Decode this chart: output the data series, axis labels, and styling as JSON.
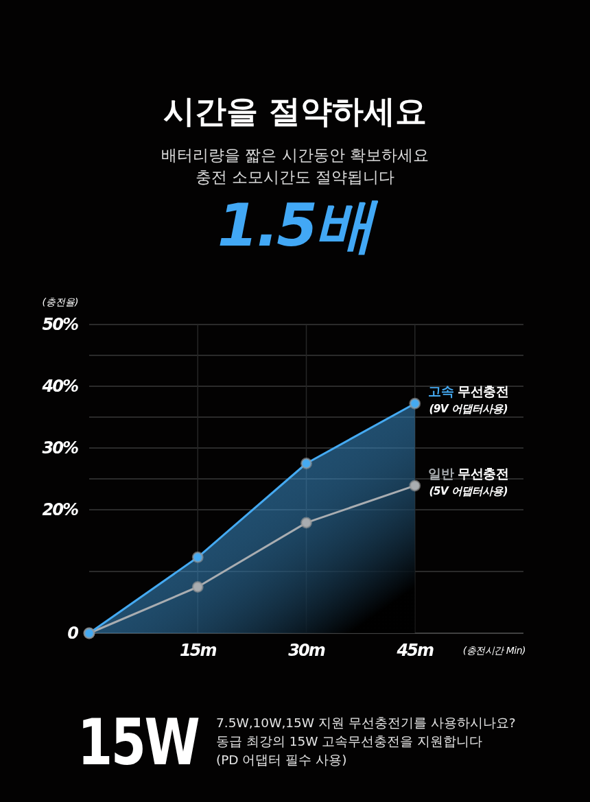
{
  "chart_data": {
    "type": "line",
    "title": "시간을 절약하세요",
    "subtitle": "배터리량을 짧은 시간동안 확보하세요\n충전 소모시간도 절약됩니다",
    "xlabel": "(충전시간 Min)",
    "ylabel": "(충전율)",
    "x": [
      0,
      15,
      30,
      45
    ],
    "series": [
      {
        "name": "고속 무선충전",
        "type": "area",
        "color": "#45aaf2",
        "values": [
          0,
          12.3,
          27.5,
          37.2
        ]
      },
      {
        "name": "일반 무선충전",
        "type": "line",
        "color": "#a9adb1",
        "values": [
          0,
          7.5,
          17.9,
          23.9
        ]
      }
    ],
    "xlim": [
      0,
      60
    ],
    "xticks": [
      {
        "value": 15,
        "label": "15m"
      },
      {
        "value": 30,
        "label": "30m"
      },
      {
        "value": 45,
        "label": "45m"
      }
    ],
    "ylim": [
      0,
      50
    ],
    "yticks": [
      0,
      {
        "value": 10,
        "label": null
      },
      {
        "value": 20,
        "label": "20%"
      },
      {
        "value": 25,
        "label": null
      },
      {
        "value": 30,
        "label": "30%"
      },
      {
        "value": 35,
        "label": null
      },
      {
        "value": 40,
        "label": "40%"
      },
      {
        "value": 45,
        "label": null
      },
      {
        "value": 50,
        "label": "50%"
      }
    ],
    "grid": true,
    "marker": "circle",
    "line_style": "solid",
    "annotations": [
      "1.5배",
      "15W",
      "7.5W,10W,15W 지원 무선충전기를 사용하시나요?",
      "동급 최강의 15W 고속무선충전을 지원합니다",
      "(PD 어댑터 필수 사용)",
      {
        "text": "(9V 어댑터사용)",
        "x": 45,
        "y": 37.2
      },
      {
        "text": "(5V 어댑터사용)",
        "x": 45,
        "y": 23.9
      }
    ]
  }
}
